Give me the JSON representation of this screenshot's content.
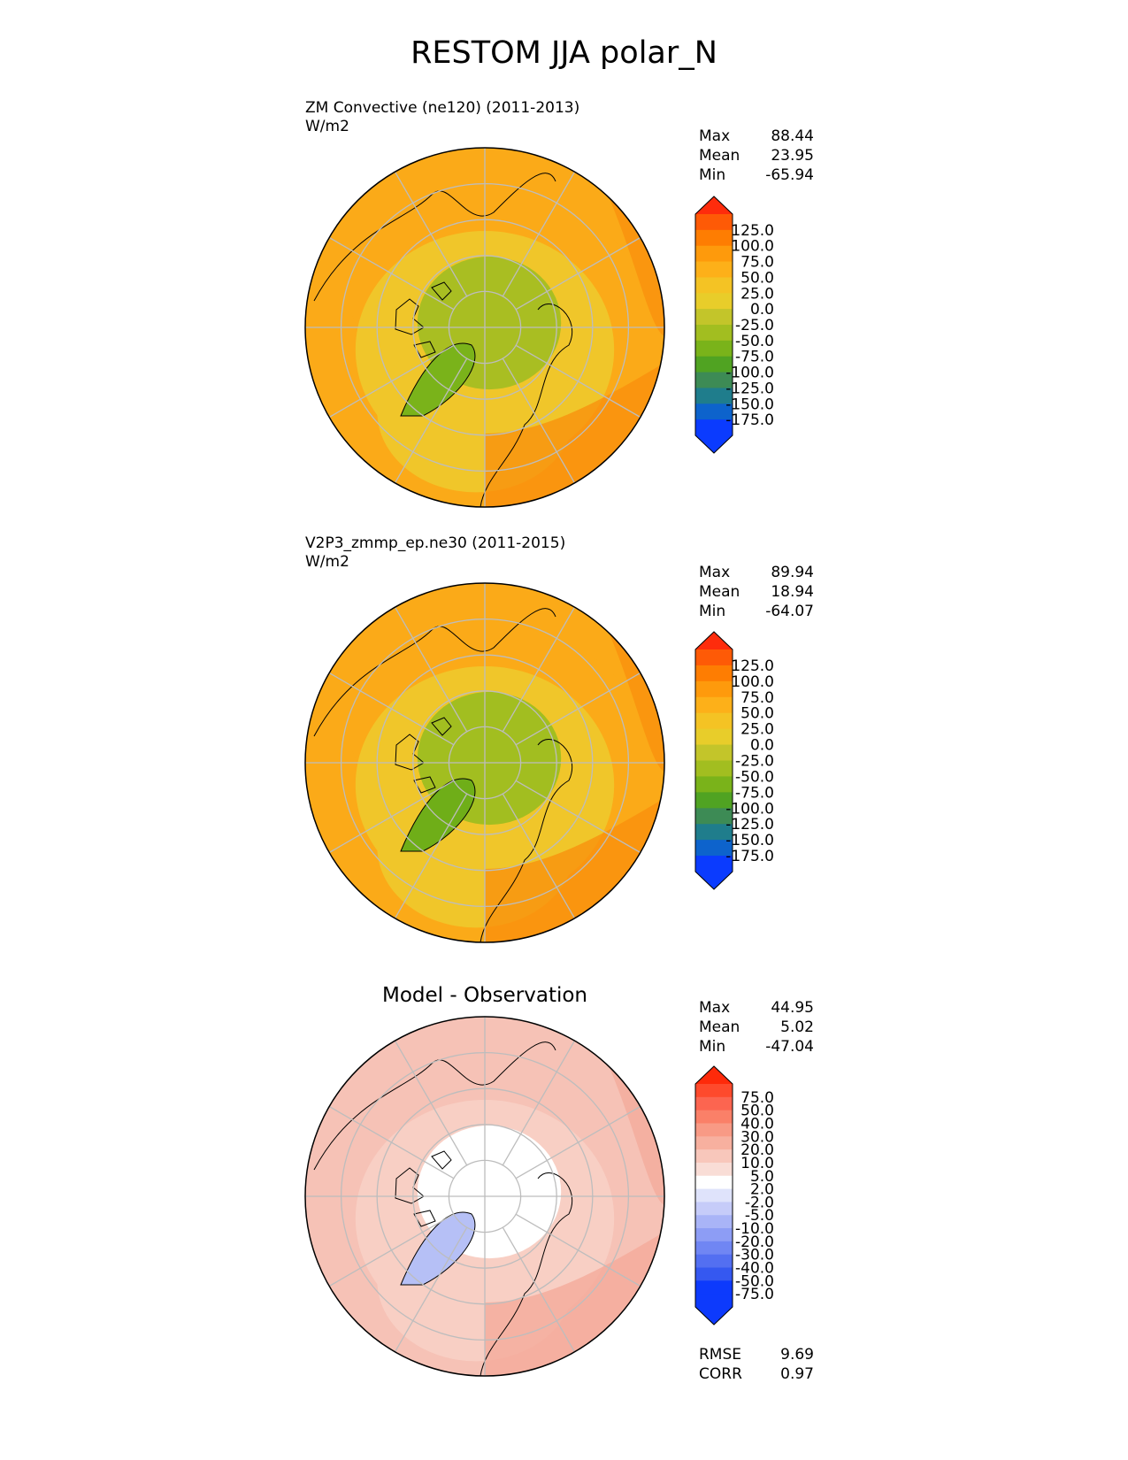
{
  "figure": {
    "title": "RESTOM JJA polar_N",
    "colors": {
      "land_outline": "#000000",
      "grid": "#bdbdbd"
    }
  },
  "panels": [
    {
      "id": "test",
      "title_line1": "ZM Convective (ne120) (2011-2013)",
      "title_line2": "W/m2",
      "center_title": "",
      "stats": [
        {
          "label": "Max",
          "value": "88.44"
        },
        {
          "label": "Mean",
          "value": "23.95"
        },
        {
          "label": "Min",
          "value": "-65.94"
        }
      ],
      "colorbar": {
        "ticks": [
          "125.0",
          "100.0",
          "75.0",
          "50.0",
          "25.0",
          "0.0",
          "-25.0",
          "-50.0",
          "-75.0",
          "-100.0",
          "-125.0",
          "-150.0",
          "-175.0"
        ],
        "colors": [
          "#fe2c0c",
          "#fe5a06",
          "#fe7d02",
          "#fe9a0c",
          "#fdb019",
          "#f4c324",
          "#e8cd2a",
          "#c3c52a",
          "#a2be20",
          "#7ab31a",
          "#50a322",
          "#3d8b55",
          "#1f7d8c",
          "#0d63cc",
          "#0b3bfe"
        ]
      },
      "fills": {
        "outer": "#fbaa18",
        "mid": "#f0c62a",
        "inner": "#a9be22",
        "green": "#7ab31a",
        "orange": "#f98d0c"
      }
    },
    {
      "id": "reference",
      "title_line1": "V2P3_zmmp_ep.ne30 (2011-2015)",
      "title_line2": "W/m2",
      "center_title": "",
      "stats": [
        {
          "label": "Max",
          "value": "89.94"
        },
        {
          "label": "Mean",
          "value": "18.94"
        },
        {
          "label": "Min",
          "value": "-64.07"
        }
      ],
      "colorbar": {
        "ticks": [
          "125.0",
          "100.0",
          "75.0",
          "50.0",
          "25.0",
          "0.0",
          "-25.0",
          "-50.0",
          "-75.0",
          "-100.0",
          "-125.0",
          "-150.0",
          "-175.0"
        ],
        "colors": [
          "#fe2c0c",
          "#fe5a06",
          "#fe7d02",
          "#fe9a0c",
          "#fdb019",
          "#f4c324",
          "#e8cd2a",
          "#c3c52a",
          "#a2be20",
          "#7ab31a",
          "#50a322",
          "#3d8b55",
          "#1f7d8c",
          "#0d63cc",
          "#0b3bfe"
        ]
      },
      "fills": {
        "outer": "#fbaa18",
        "mid": "#f0c62a",
        "inner": "#a2be20",
        "green": "#6fae18",
        "orange": "#f98d0c"
      }
    },
    {
      "id": "diff",
      "title_line1": "",
      "title_line2": "",
      "center_title": "Model - Observation",
      "stats": [
        {
          "label": "Max",
          "value": "44.95"
        },
        {
          "label": "Mean",
          "value": "5.02"
        },
        {
          "label": "Min",
          "value": "-47.04"
        }
      ],
      "extra_stats": [
        {
          "label": "RMSE",
          "value": "9.69"
        },
        {
          "label": "CORR",
          "value": "0.97"
        }
      ],
      "colorbar": {
        "ticks": [
          "75.0",
          "50.0",
          "40.0",
          "30.0",
          "20.0",
          "10.0",
          "5.0",
          "2.0",
          "-2.0",
          "-5.0",
          "-10.0",
          "-20.0",
          "-30.0",
          "-40.0",
          "-50.0",
          "-75.0"
        ],
        "colors": [
          "#fe2a0a",
          "#fe4a2c",
          "#fc6550",
          "#fa8068",
          "#f89a85",
          "#f7b09f",
          "#f8c7bb",
          "#f9ddd6",
          "#ffffff",
          "#dfe3fb",
          "#c6ccf9",
          "#a9b4f7",
          "#8d9df5",
          "#7086f3",
          "#536ff1",
          "#3558f0",
          "#0d3afc"
        ]
      },
      "fills": {
        "outer": "#f6c2b6",
        "mid": "#f8cfc4",
        "inner": "#ffffff",
        "green": "#b6c0f6",
        "orange": "#f4a898"
      }
    }
  ],
  "chart_data": [
    {
      "type": "heatmap",
      "projection": "polar north stereographic",
      "title": "ZM Convective (ne120) (2011-2013)",
      "units": "W/m2",
      "stats": {
        "max": 88.44,
        "mean": 23.95,
        "min": -65.94
      },
      "levels": [
        -175.0,
        -150.0,
        -125.0,
        -100.0,
        -75.0,
        -50.0,
        -25.0,
        0.0,
        25.0,
        50.0,
        75.0,
        100.0,
        125.0
      ],
      "colorbar_extend": "both",
      "grid": true
    },
    {
      "type": "heatmap",
      "projection": "polar north stereographic",
      "title": "V2P3_zmmp_ep.ne30 (2011-2015)",
      "units": "W/m2",
      "stats": {
        "max": 89.94,
        "mean": 18.94,
        "min": -64.07
      },
      "levels": [
        -175.0,
        -150.0,
        -125.0,
        -100.0,
        -75.0,
        -50.0,
        -25.0,
        0.0,
        25.0,
        50.0,
        75.0,
        100.0,
        125.0
      ],
      "colorbar_extend": "both",
      "grid": true
    },
    {
      "type": "heatmap",
      "projection": "polar north stereographic",
      "title": "Model - Observation",
      "stats": {
        "max": 44.95,
        "mean": 5.02,
        "min": -47.04,
        "rmse": 9.69,
        "corr": 0.97
      },
      "levels": [
        -75.0,
        -50.0,
        -40.0,
        -30.0,
        -20.0,
        -10.0,
        -5.0,
        -2.0,
        2.0,
        5.0,
        10.0,
        20.0,
        30.0,
        40.0,
        50.0,
        75.0
      ],
      "colorbar_extend": "both",
      "grid": true
    }
  ]
}
